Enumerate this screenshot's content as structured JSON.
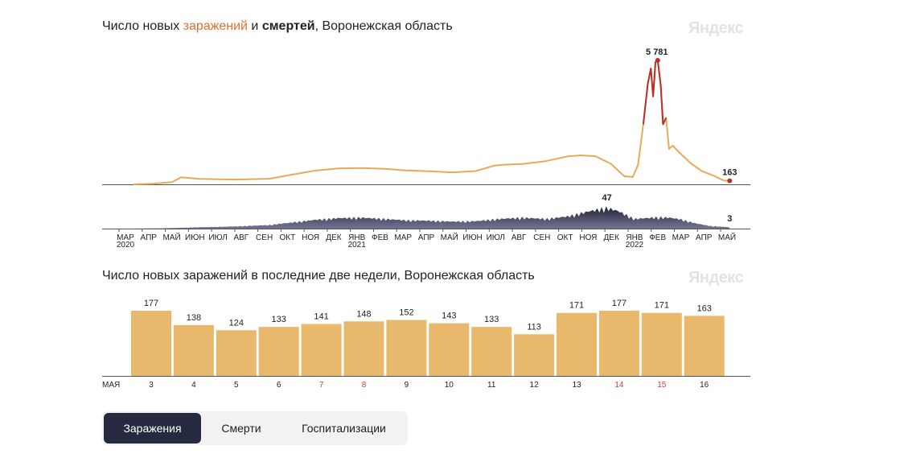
{
  "chart1": {
    "title_part1": "Число новых ",
    "title_infections": "заражений",
    "title_part2": " и ",
    "title_deaths": "смертей",
    "title_part3": ", Воронежская область"
  },
  "chart2": {
    "title": "Число новых заражений в последние две недели, Воронежская область"
  },
  "brand": "Яндекс",
  "tabs": [
    {
      "label": "Заражения",
      "active": true
    },
    {
      "label": "Смерти",
      "active": false
    },
    {
      "label": "Госпитализации",
      "active": false
    }
  ],
  "colors": {
    "infections_line": "#e8a95a",
    "infections_peak": "#b5322a",
    "deaths_area": "#5a5c80",
    "deaths_peak": "#1f2033",
    "bars": "#e8b96d",
    "weekend": "#d23c2a",
    "axis": "#555555"
  },
  "chart_data": [
    {
      "type": "line",
      "x_labels": [
        {
          "label": "МАР",
          "year": "2020"
        },
        {
          "label": "АПР"
        },
        {
          "label": "МАЙ"
        },
        {
          "label": "ИЮН"
        },
        {
          "label": "ИЮЛ"
        },
        {
          "label": "АВГ"
        },
        {
          "label": "СЕН"
        },
        {
          "label": "ОКТ"
        },
        {
          "label": "НОЯ"
        },
        {
          "label": "ДЕК"
        },
        {
          "label": "ЯНВ",
          "year": "2021"
        },
        {
          "label": "ФЕВ"
        },
        {
          "label": "МАР"
        },
        {
          "label": "АПР"
        },
        {
          "label": "МАЙ"
        },
        {
          "label": "ИЮН"
        },
        {
          "label": "ИЮЛ"
        },
        {
          "label": "АВГ"
        },
        {
          "label": "СЕН"
        },
        {
          "label": "ОКТ"
        },
        {
          "label": "НОЯ"
        },
        {
          "label": "ДЕК"
        },
        {
          "label": "ЯНВ",
          "year": "2022"
        },
        {
          "label": "ФЕВ"
        },
        {
          "label": "МАР"
        },
        {
          "label": "АПР"
        },
        {
          "label": "МАЙ"
        }
      ],
      "series": [
        {
          "points": [
            [
              "2020-03-20",
              0
            ],
            [
              "2020-04-15",
              30
            ],
            [
              "2020-05-10",
              100
            ],
            [
              "2020-05-22",
              330
            ],
            [
              "2020-06-15",
              250
            ],
            [
              "2020-08-01",
              220
            ],
            [
              "2020-09-15",
              260
            ],
            [
              "2020-10-15",
              450
            ],
            [
              "2020-11-15",
              640
            ],
            [
              "2020-12-15",
              740
            ],
            [
              "2021-01-15",
              760
            ],
            [
              "2021-02-15",
              720
            ],
            [
              "2021-03-15",
              650
            ],
            [
              "2021-04-15",
              610
            ],
            [
              "2021-05-15",
              560
            ],
            [
              "2021-06-15",
              620
            ],
            [
              "2021-07-10",
              880
            ],
            [
              "2021-07-25",
              920
            ],
            [
              "2021-08-15",
              950
            ],
            [
              "2021-09-15",
              1080
            ],
            [
              "2021-10-15",
              1310
            ],
            [
              "2021-11-01",
              1350
            ],
            [
              "2021-11-20",
              1310
            ],
            [
              "2021-12-10",
              960
            ],
            [
              "2021-12-28",
              380
            ],
            [
              "2022-01-08",
              340
            ],
            [
              "2022-01-15",
              900
            ],
            [
              "2022-01-22",
              2800
            ],
            [
              "2022-01-28",
              4700
            ],
            [
              "2022-02-01",
              5400
            ],
            [
              "2022-02-04",
              4100
            ],
            [
              "2022-02-07",
              5700
            ],
            [
              "2022-02-10",
              5781
            ],
            [
              "2022-02-14",
              4600
            ],
            [
              "2022-02-17",
              2800
            ],
            [
              "2022-02-21",
              3100
            ],
            [
              "2022-02-25",
              1650
            ],
            [
              "2022-03-02",
              1800
            ],
            [
              "2022-03-10",
              1500
            ],
            [
              "2022-03-25",
              1000
            ],
            [
              "2022-04-10",
              600
            ],
            [
              "2022-04-25",
              400
            ],
            [
              "2022-05-08",
              180
            ],
            [
              "2022-05-16",
              163
            ]
          ]
        },
        {
          "points": [
            [
              "2020-03-20",
              0
            ],
            [
              "2020-05-01",
              1
            ],
            [
              "2020-06-15",
              3
            ],
            [
              "2020-08-01",
              5
            ],
            [
              "2020-09-15",
              8
            ],
            [
              "2020-10-15",
              14
            ],
            [
              "2020-11-15",
              20
            ],
            [
              "2020-12-15",
              24
            ],
            [
              "2021-01-15",
              25
            ],
            [
              "2021-02-15",
              22
            ],
            [
              "2021-03-15",
              19
            ],
            [
              "2021-04-15",
              18
            ],
            [
              "2021-05-15",
              16
            ],
            [
              "2021-06-15",
              17
            ],
            [
              "2021-07-15",
              22
            ],
            [
              "2021-08-15",
              25
            ],
            [
              "2021-09-15",
              22
            ],
            [
              "2021-10-15",
              28
            ],
            [
              "2021-11-10",
              39
            ],
            [
              "2021-11-25",
              44
            ],
            [
              "2021-12-05",
              47
            ],
            [
              "2021-12-20",
              40
            ],
            [
              "2022-01-10",
              22
            ],
            [
              "2022-02-10",
              26
            ],
            [
              "2022-02-25",
              25
            ],
            [
              "2022-03-10",
              22
            ],
            [
              "2022-04-01",
              12
            ],
            [
              "2022-04-20",
              6
            ],
            [
              "2022-05-16",
              3
            ]
          ]
        }
      ],
      "annotations": [
        {
          "text": "5 781",
          "x": "2022-02-10",
          "y": 5781
        },
        {
          "text": "163",
          "x": "2022-05-16",
          "y": 163
        },
        {
          "text": "47",
          "x": "2021-12-05",
          "y": 47
        },
        {
          "text": "3",
          "x": "2022-05-16",
          "y": 3
        }
      ],
      "x_range": [
        "2020-03-01",
        "2022-05-21"
      ],
      "y_range_infections": [
        0,
        5781
      ],
      "y_range_deaths": [
        0,
        47
      ],
      "grid": false
    },
    {
      "type": "bar",
      "month_label": "МАЯ",
      "categories": [
        "3",
        "4",
        "5",
        "6",
        "7",
        "8",
        "9",
        "10",
        "11",
        "12",
        "13",
        "14",
        "15",
        "16"
      ],
      "weekend": [
        false,
        false,
        false,
        false,
        true,
        true,
        false,
        false,
        false,
        false,
        false,
        true,
        true,
        false
      ],
      "values": [
        177,
        138,
        124,
        133,
        141,
        148,
        152,
        143,
        133,
        113,
        171,
        177,
        171,
        163
      ],
      "ylim": [
        0,
        177
      ]
    }
  ]
}
